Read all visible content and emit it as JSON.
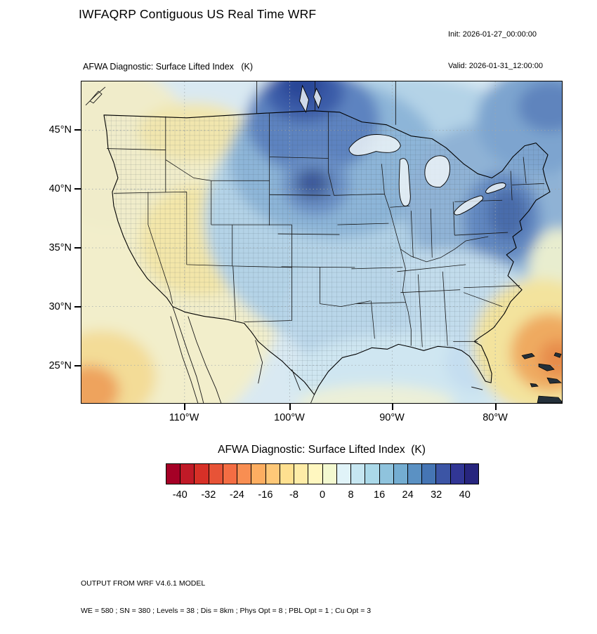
{
  "header": {
    "title": "IWFAQRP Contiguous US Real Time WRF",
    "init": "Init: 2026-01-27_00:00:00",
    "valid": "Valid: 2026-01-31_12:00:00"
  },
  "map": {
    "subtitle": "AFWA Diagnostic: Surface Lifted Index   (K)",
    "lat_ticks": [
      "45°N",
      "40°N",
      "35°N",
      "30°N",
      "25°N"
    ],
    "lon_ticks": [
      "110°W",
      "100°W",
      "90°W",
      "80°W"
    ]
  },
  "colorbar": {
    "title": "AFWA Diagnostic: Surface Lifted Index  (K)",
    "tick_labels": [
      "-40",
      "-32",
      "-24",
      "-16",
      "-8",
      "0",
      "8",
      "16",
      "24",
      "32",
      "40"
    ],
    "colors": [
      "#a50026",
      "#c01a27",
      "#d73027",
      "#e75337",
      "#f46d43",
      "#f88e52",
      "#fdae61",
      "#fec878",
      "#fee090",
      "#feeca7",
      "#fff7c0",
      "#f3f9d0",
      "#e0f3f8",
      "#c6e6f1",
      "#abd9e9",
      "#8fc3dd",
      "#74add1",
      "#5b91c3",
      "#4575b4",
      "#3c55a5",
      "#313695",
      "#27257e"
    ]
  },
  "footer": {
    "line1": "OUTPUT FROM WRF V4.6.1 MODEL",
    "line2": "WE = 580 ; SN = 380 ; Levels = 38 ; Dis = 8km ; Phys Opt = 8 ; PBL Opt = 1 ; Cu Opt = 3"
  },
  "chart_data": {
    "type": "heatmap",
    "title": "AFWA Diagnostic: Surface Lifted Index (K)",
    "units": "K",
    "region": "Contiguous US",
    "colorbar_tick_values": [
      -40,
      -32,
      -24,
      -16,
      -8,
      0,
      8,
      16,
      24,
      32,
      40
    ],
    "lat_axis": [
      "45°N",
      "40°N",
      "35°N",
      "30°N",
      "25°N"
    ],
    "lon_axis": [
      "110°W",
      "100°W",
      "90°W",
      "80°W"
    ],
    "legend_position": "bottom"
  }
}
